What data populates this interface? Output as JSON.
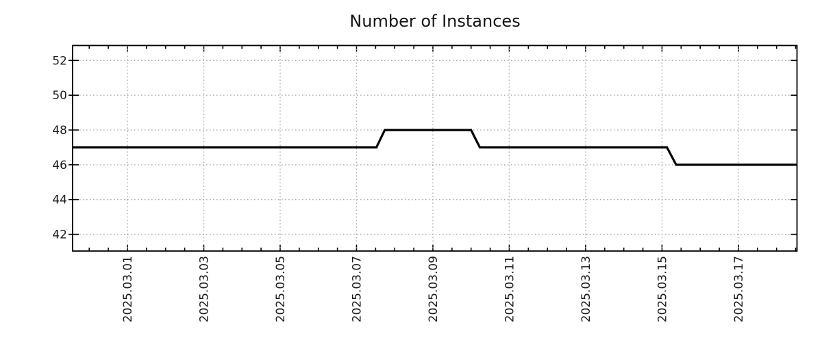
{
  "chart_data": {
    "type": "line",
    "title": "Number of Instances",
    "legend": "none",
    "background": "#ffffff",
    "grid": {
      "show": true,
      "style": "dotted",
      "color": "#ababab"
    },
    "x_axis": {
      "unit": "date",
      "note": "t = days since 2025-03-01 00:00",
      "lim": [
        -1.435,
        17.535
      ],
      "minor_tick_step_days": 0.5,
      "major_ticks": [
        {
          "t": 0,
          "label": "2025.03.01"
        },
        {
          "t": 2,
          "label": "2025.03.03"
        },
        {
          "t": 4,
          "label": "2025.03.05"
        },
        {
          "t": 6,
          "label": "2025.03.07"
        },
        {
          "t": 8,
          "label": "2025.03.09"
        },
        {
          "t": 10,
          "label": "2025.03.11"
        },
        {
          "t": 12,
          "label": "2025.03.13"
        },
        {
          "t": 14,
          "label": "2025.03.15"
        },
        {
          "t": 16,
          "label": "2025.03.17"
        }
      ]
    },
    "y_axis": {
      "lim": [
        41.04,
        52.86
      ],
      "ticks": [
        42,
        44,
        46,
        48,
        50,
        52
      ]
    },
    "series": [
      {
        "name": "instances",
        "color": "#000000",
        "line_width": 3.2,
        "points": [
          {
            "t": -1.435,
            "v": 47
          },
          {
            "t": 6.52,
            "v": 47
          },
          {
            "t": 6.74,
            "v": 48
          },
          {
            "t": 9.0,
            "v": 48
          },
          {
            "t": 9.23,
            "v": 47
          },
          {
            "t": 14.13,
            "v": 47
          },
          {
            "t": 14.37,
            "v": 46
          },
          {
            "t": 17.535,
            "v": 46
          }
        ]
      }
    ]
  }
}
